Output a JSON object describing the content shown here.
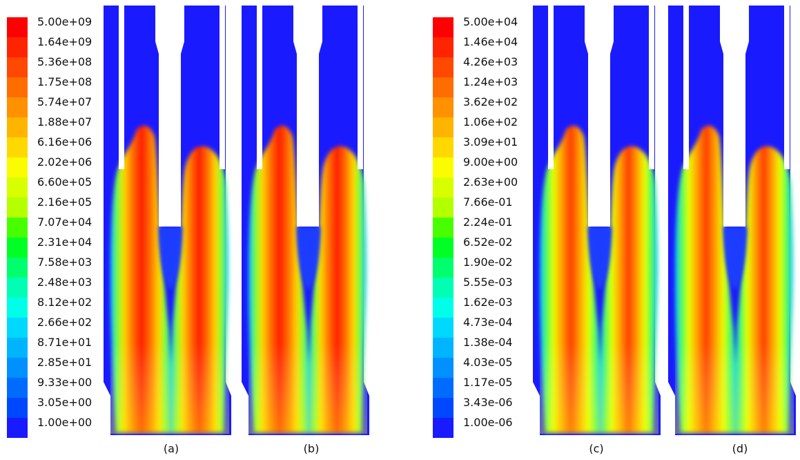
{
  "legend_left": {
    "labels": [
      "5.00e+09",
      "1.64e+09",
      "5.36e+08",
      "1.75e+08",
      "5.74e+07",
      "1.88e+07",
      "6.16e+06",
      "2.02e+06",
      "6.60e+05",
      "2.16e+05",
      "7.07e+04",
      "2.31e+04",
      "7.58e+03",
      "2.48e+03",
      "8.12e+02",
      "2.66e+02",
      "8.71e+01",
      "2.85e+01",
      "9.33e+00",
      "3.05e+00",
      "1.00e+00"
    ]
  },
  "legend_right": {
    "labels": [
      "5.00e+04",
      "1.46e+04",
      "4.26e+03",
      "1.24e+03",
      "3.62e+02",
      "1.06e+02",
      "3.09e+01",
      "9.00e+00",
      "2.63e+00",
      "7.66e-01",
      "2.24e-01",
      "6.52e-02",
      "1.90e-02",
      "5.55e-03",
      "1.62e-03",
      "4.73e-04",
      "1.38e-04",
      "4.03e-05",
      "1.17e-05",
      "3.43e-06",
      "1.00e-06"
    ]
  },
  "colormap": [
    "#ff0000",
    "#ff2400",
    "#ff4800",
    "#ff6c00",
    "#ff9000",
    "#ffb400",
    "#ffd800",
    "#fcfc00",
    "#d8ff00",
    "#b4ff00",
    "#48ff00",
    "#00ff24",
    "#00ff6c",
    "#00ffb4",
    "#00ffe8",
    "#00d8ff",
    "#00b4ff",
    "#0090ff",
    "#006cff",
    "#0048ff",
    "#1a1aff"
  ],
  "panels": [
    {
      "id": "a",
      "caption": "(a)"
    },
    {
      "id": "b",
      "caption": "(b)"
    },
    {
      "id": "c",
      "caption": "(c)"
    },
    {
      "id": "d",
      "caption": "(d)"
    }
  ]
}
